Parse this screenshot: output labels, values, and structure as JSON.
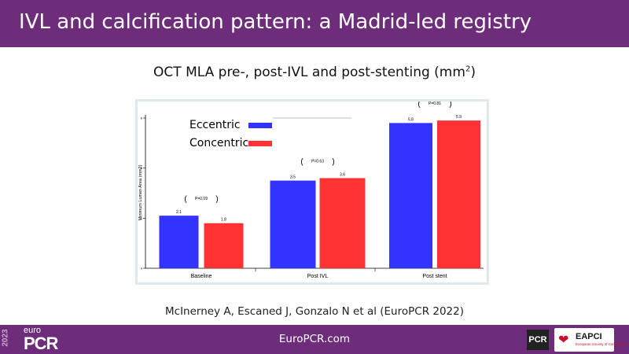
{
  "header": {
    "title": "IVL and calcification pattern: a Madrid-led registry"
  },
  "subtitle": {
    "text": "OCT MLA pre-, post-IVL and post-stenting (mm",
    "superscript": "2",
    "close": ")"
  },
  "chart_data": {
    "type": "bar",
    "title": "",
    "xlabel": "",
    "ylabel": "Minimum Lumen Area (mm2)",
    "ylim": [
      0,
      6
    ],
    "y_ticks": [
      "0",
      "2",
      "4",
      "6"
    ],
    "categories": [
      "Baseline",
      "Post IVL",
      "Post stent"
    ],
    "series": [
      {
        "name": "Eccentric",
        "color": "#3333ff",
        "values": [
          2.1,
          3.5,
          5.8
        ],
        "labels": [
          "2.1",
          "3.5",
          "5.8"
        ]
      },
      {
        "name": "Concentric",
        "color": "#ff3333",
        "values": [
          1.8,
          3.6,
          5.9
        ],
        "labels": [
          "1.8",
          "3.6",
          "5.9"
        ]
      }
    ],
    "p_values": [
      "P=0.09",
      "P=0.63",
      "P=0.81"
    ],
    "legend": "top-left",
    "grid": false
  },
  "citation": "McInerney A, Escaned J, Gonzalo N et al (EuroPCR 2022)",
  "footer": {
    "url": "EuroPCR.com",
    "year": "2023",
    "brand_small": "euro",
    "brand_large": "PCR",
    "badge_pcr": "PCR",
    "badge_eapci": "EAPCI",
    "badge_eapci_sub": "European Society of Cardiology"
  },
  "colors": {
    "header": "#6e2d7a",
    "eccentric": "#3333ff",
    "concentric": "#ff3333"
  }
}
